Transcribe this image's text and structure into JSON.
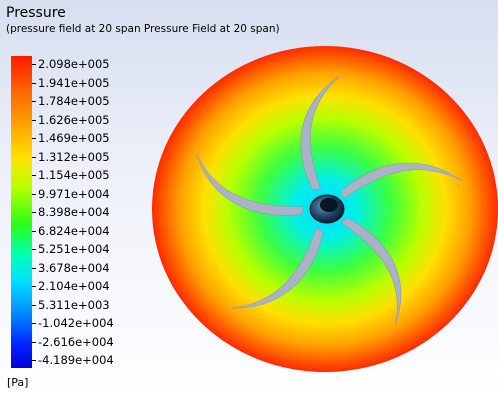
{
  "header": {
    "title": "Pressure",
    "subtitle": "(pressure field at 20 span Pressure Field at 20 span)"
  },
  "legend": {
    "unit": "[Pa]",
    "ticks": [
      "2.098e+005",
      "1.941e+005",
      "1.784e+005",
      "1.626e+005",
      "1.469e+005",
      "1.312e+005",
      "1.154e+005",
      "9.971e+004",
      "8.398e+004",
      "6.824e+004",
      "5.251e+004",
      "3.678e+004",
      "2.104e+004",
      "5.311e+003",
      "-1.042e+004",
      "-2.616e+004",
      "-4.189e+004"
    ],
    "colors": {
      "max": "#ff1a00",
      "high": "#ffae00",
      "mid": "#29ff18",
      "low": "#00e0ff",
      "min": "#0000d8"
    }
  },
  "contour": {
    "impeller_blades": 5,
    "blade_color": "#a9b2c6",
    "hub_color": "#1e3a5a"
  }
}
